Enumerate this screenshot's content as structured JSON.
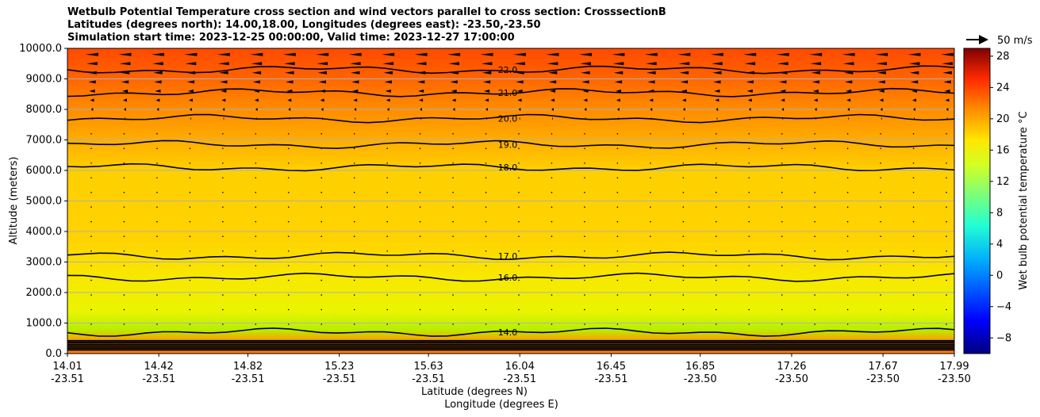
{
  "chart_data": {
    "type": "contour",
    "title_lines": [
      "Wetbulb Potential Temperature cross section and wind vectors parallel to cross section: CrosssectionB",
      "Latitudes (degrees north): 14.00,18.00, Longitudes (degrees east): -23.50,-23.50",
      "Simulation start time: 2023-12-25 00:00:00, Valid time: 2023-12-27 17:00:00"
    ],
    "ylabel": "Altitude (meters)",
    "xlabel_lines": [
      "Latitude (degrees N)",
      "Longitude (degrees E)"
    ],
    "ylim": [
      0,
      10000
    ],
    "y_ticks": [
      "0.0",
      "1000.0",
      "2000.0",
      "3000.0",
      "4000.0",
      "5000.0",
      "6000.0",
      "7000.0",
      "8000.0",
      "9000.0",
      "10000.0"
    ],
    "x_ticks": [
      {
        "lat": "14.01",
        "lon": "-23.51"
      },
      {
        "lat": "14.42",
        "lon": "-23.51"
      },
      {
        "lat": "14.82",
        "lon": "-23.51"
      },
      {
        "lat": "15.23",
        "lon": "-23.51"
      },
      {
        "lat": "15.63",
        "lon": "-23.51"
      },
      {
        "lat": "16.04",
        "lon": "-23.51"
      },
      {
        "lat": "16.45",
        "lon": "-23.51"
      },
      {
        "lat": "16.85",
        "lon": "-23.50"
      },
      {
        "lat": "17.26",
        "lon": "-23.50"
      },
      {
        "lat": "17.67",
        "lon": "-23.50"
      },
      {
        "lat": "17.99",
        "lon": "-23.50"
      }
    ],
    "grid": true,
    "colorbar": {
      "label": "Wet bulb potential temperature $^\\circ$C",
      "label_display": "Wet bulb potential temperature °C",
      "min": -10,
      "max": 29,
      "ticks": [
        "28",
        "24",
        "20",
        "16",
        "12",
        "8",
        "4",
        "0",
        "−4",
        "−8"
      ],
      "tick_values": [
        28,
        24,
        20,
        16,
        12,
        8,
        4,
        0,
        -4,
        -8
      ]
    },
    "quiver_key": "50 m/s",
    "contours": [
      {
        "level": "22.0",
        "altitude": 9300
      },
      {
        "level": "21.0",
        "altitude": 8550
      },
      {
        "level": "20.0",
        "altitude": 7700
      },
      {
        "level": "19.0",
        "altitude": 6850
      },
      {
        "level": "18.0",
        "altitude": 6100
      },
      {
        "level": "17.0",
        "altitude": 3200
      },
      {
        "level": "16.0",
        "altitude": 2500
      },
      {
        "level": "14.0",
        "altitude": 700
      }
    ]
  }
}
